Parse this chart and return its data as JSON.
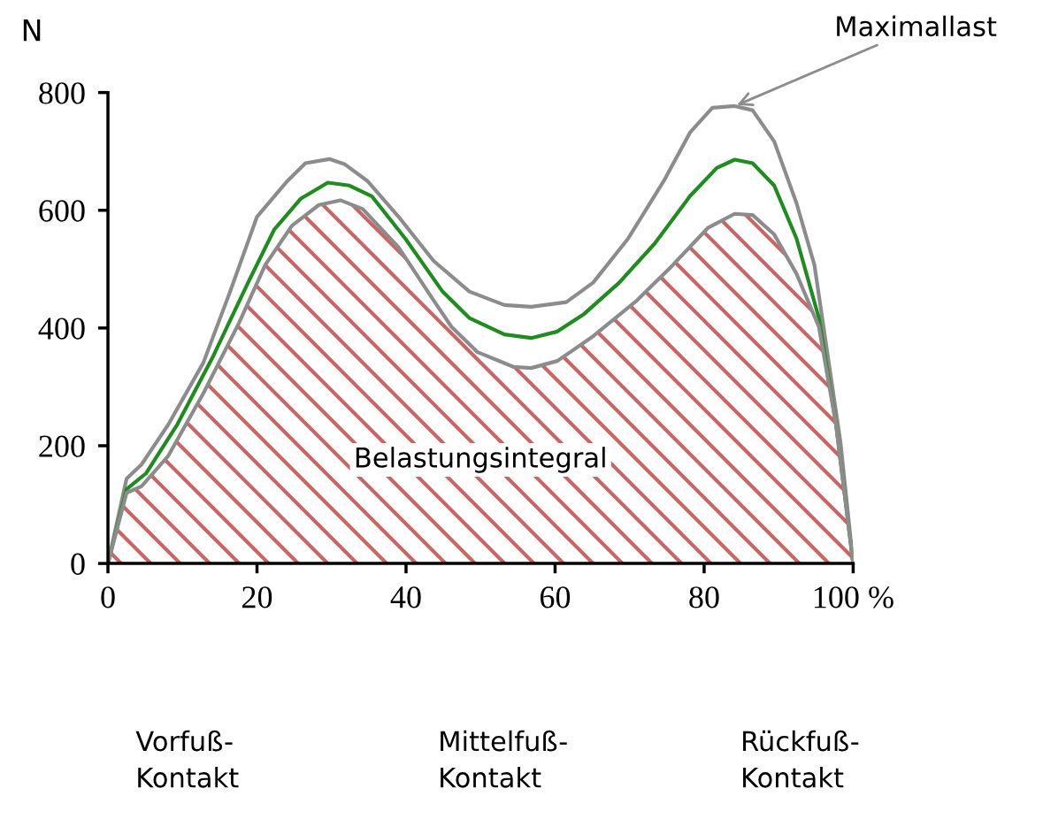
{
  "chart_data": {
    "type": "line",
    "ylabel": "N",
    "xlim": [
      0,
      100
    ],
    "ylim": [
      0,
      800
    ],
    "xticks": [
      0,
      20,
      40,
      60,
      80,
      {
        "value": 100,
        "label": "100 %"
      }
    ],
    "yticks": [
      0,
      200,
      400,
      600,
      800
    ],
    "grid": false,
    "legend": false,
    "marker": "none",
    "line_style": "solid",
    "series": [
      {
        "color": "#8c8c8c",
        "x": [
          0,
          2.5,
          4.5,
          8.1,
          12.8,
          16.4,
          20,
          24.1,
          26.5,
          29.7,
          31.8,
          34.8,
          39,
          43.7,
          48.5,
          53.2,
          56.8,
          61.5,
          65.1,
          69.8,
          74.6,
          78.1,
          81.1,
          84.1,
          86.5,
          89.4,
          92.4,
          94.8,
          98.3,
          100
        ],
        "values": [
          0,
          144,
          168,
          236,
          341,
          462,
          589,
          650,
          680,
          687,
          678,
          650,
          589,
          514,
          462,
          439,
          436,
          444,
          477,
          552,
          650,
          732,
          774,
          777,
          770,
          717,
          612,
          507,
          206,
          0
        ]
      },
      {
        "color": "#1e8c1e",
        "x": [
          0,
          2.5,
          5.1,
          9.3,
          14,
          18.8,
          22.3,
          25.9,
          29.5,
          32.4,
          35.4,
          39.9,
          44.9,
          48.5,
          53.2,
          56.8,
          60.3,
          63.9,
          68.6,
          73.4,
          78.1,
          81.7,
          84.1,
          86.5,
          89.4,
          92.4,
          95.4,
          97.7,
          100
        ],
        "values": [
          0,
          126,
          153,
          236,
          349,
          477,
          567,
          620,
          647,
          642,
          624,
          552,
          462,
          417,
          389,
          383,
          394,
          424,
          477,
          544,
          624,
          672,
          686,
          680,
          642,
          552,
          417,
          236,
          0
        ]
      },
      {
        "type": "area",
        "color": "#8c8c8c",
        "x": [
          0,
          2.5,
          4.5,
          8.1,
          12.8,
          17.6,
          21.1,
          24.7,
          28.3,
          31.2,
          34.2,
          39,
          43.7,
          46.1,
          49.6,
          54.4,
          56.8,
          60.3,
          65.1,
          71,
          75.8,
          80.5,
          84.1,
          86.5,
          89.4,
          92.4,
          95.4,
          97.7,
          100
        ],
        "values": [
          0,
          120,
          131,
          183,
          289,
          409,
          507,
          574,
          609,
          617,
          602,
          537,
          447,
          402,
          359,
          334,
          332,
          344,
          386,
          447,
          507,
          570,
          594,
          592,
          559,
          492,
          402,
          236,
          0
        ]
      }
    ],
    "annotations": [
      {
        "text": "Maximallast",
        "x": 84.1,
        "y": 777
      },
      "Belastungsintegral",
      "Vorfuß-\nKontakt",
      "Mittelfuß-\nKontakt",
      "Rückfuß-\nKontakt"
    ]
  }
}
